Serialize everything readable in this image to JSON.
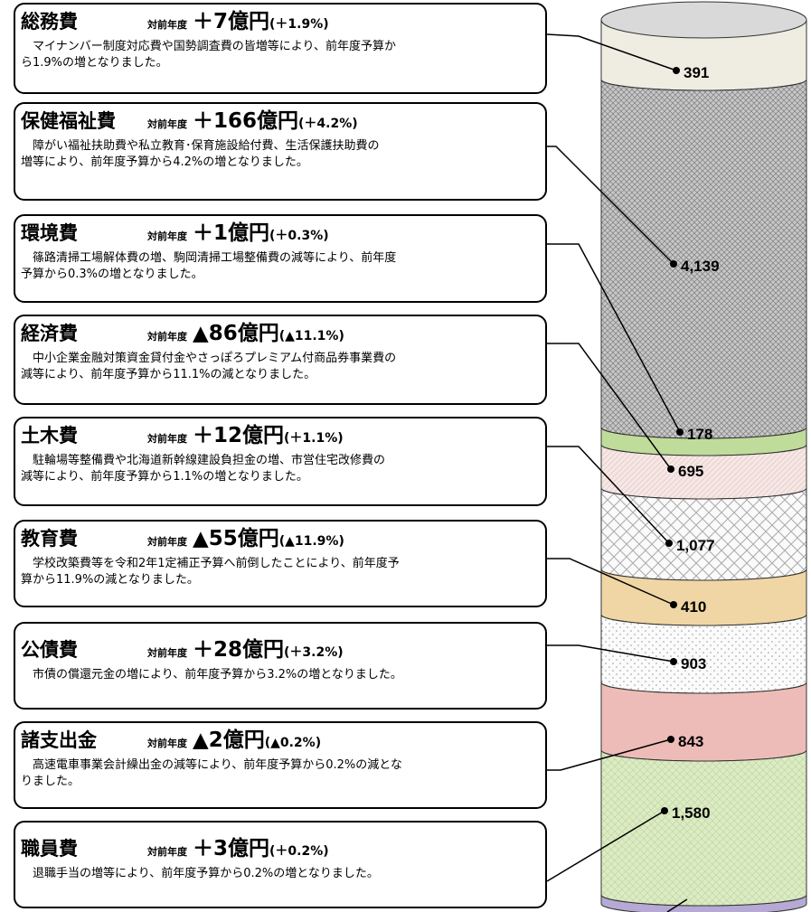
{
  "items": [
    {
      "name": "総務費",
      "yoy": "対前年度",
      "change": "＋7億円",
      "pct": "(＋1.9%)",
      "desc": [
        "マイナンバー制度対応費や国勢調査費の皆増等により、前年度予算か",
        "ら1.9%の増となりました。"
      ],
      "amount": "391"
    },
    {
      "name": "保健福祉費",
      "yoy": "対前年度",
      "change": "＋166億円",
      "pct": "(＋4.2%)",
      "desc": [
        "障がい福祉扶助費や私立教育･保育施設給付費、生活保護扶助費の",
        "増等により、前年度予算から4.2%の増となりました。"
      ],
      "amount": "4,139"
    },
    {
      "name": "環境費",
      "yoy": "対前年度",
      "change": "＋1億円",
      "pct": "(＋0.3%)",
      "desc": [
        "篠路清掃工場解体費の増、駒岡清掃工場整備費の減等により、前年度",
        "予算から0.3%の増となりました。"
      ],
      "amount": "178"
    },
    {
      "name": "経済費",
      "yoy": "対前年度",
      "change": "▲86億円",
      "pct": "(▲11.1%)",
      "desc": [
        "中小企業金融対策資金貸付金やさっぽろプレミアム付商品券事業費の",
        "減等により、前年度予算から11.1%の減となりました。"
      ],
      "amount": "695"
    },
    {
      "name": "土木費",
      "yoy": "対前年度",
      "change": "＋12億円",
      "pct": "(＋1.1%)",
      "desc": [
        "駐輪場等整備費や北海道新幹線建設負担金の増、市営住宅改修費の",
        "減等により、前年度予算から1.1%の増となりました。"
      ],
      "amount": "1,077"
    },
    {
      "name": "教育費",
      "yoy": "対前年度",
      "change": "▲55億円",
      "pct": "(▲11.9%)",
      "desc": [
        "学校改築費等を令和2年1定補正予算へ前倒したことにより、前年度予",
        "算から11.9%の減となりました。"
      ],
      "amount": "410"
    },
    {
      "name": "公債費",
      "yoy": "対前年度",
      "change": "＋28億円",
      "pct": "(＋3.2%)",
      "desc": [
        "市債の償還元金の増により、前年度予算から3.2%の増となりました。"
      ],
      "amount": "903"
    },
    {
      "name": "諸支出金",
      "yoy": "対前年度",
      "change": "▲2億円",
      "pct": "(▲0.2%)",
      "desc": [
        "高速電車事業会計繰出金の減等により、前年度予算から0.2%の減とな",
        "りました。"
      ],
      "amount": "843"
    },
    {
      "name": "職員費",
      "yoy": "対前年度",
      "change": "＋3億円",
      "pct": "(＋0.2%)",
      "desc": [
        "退職手当の増等により、前年度予算から0.2%の増となりました。"
      ],
      "amount": "1,580"
    }
  ]
}
